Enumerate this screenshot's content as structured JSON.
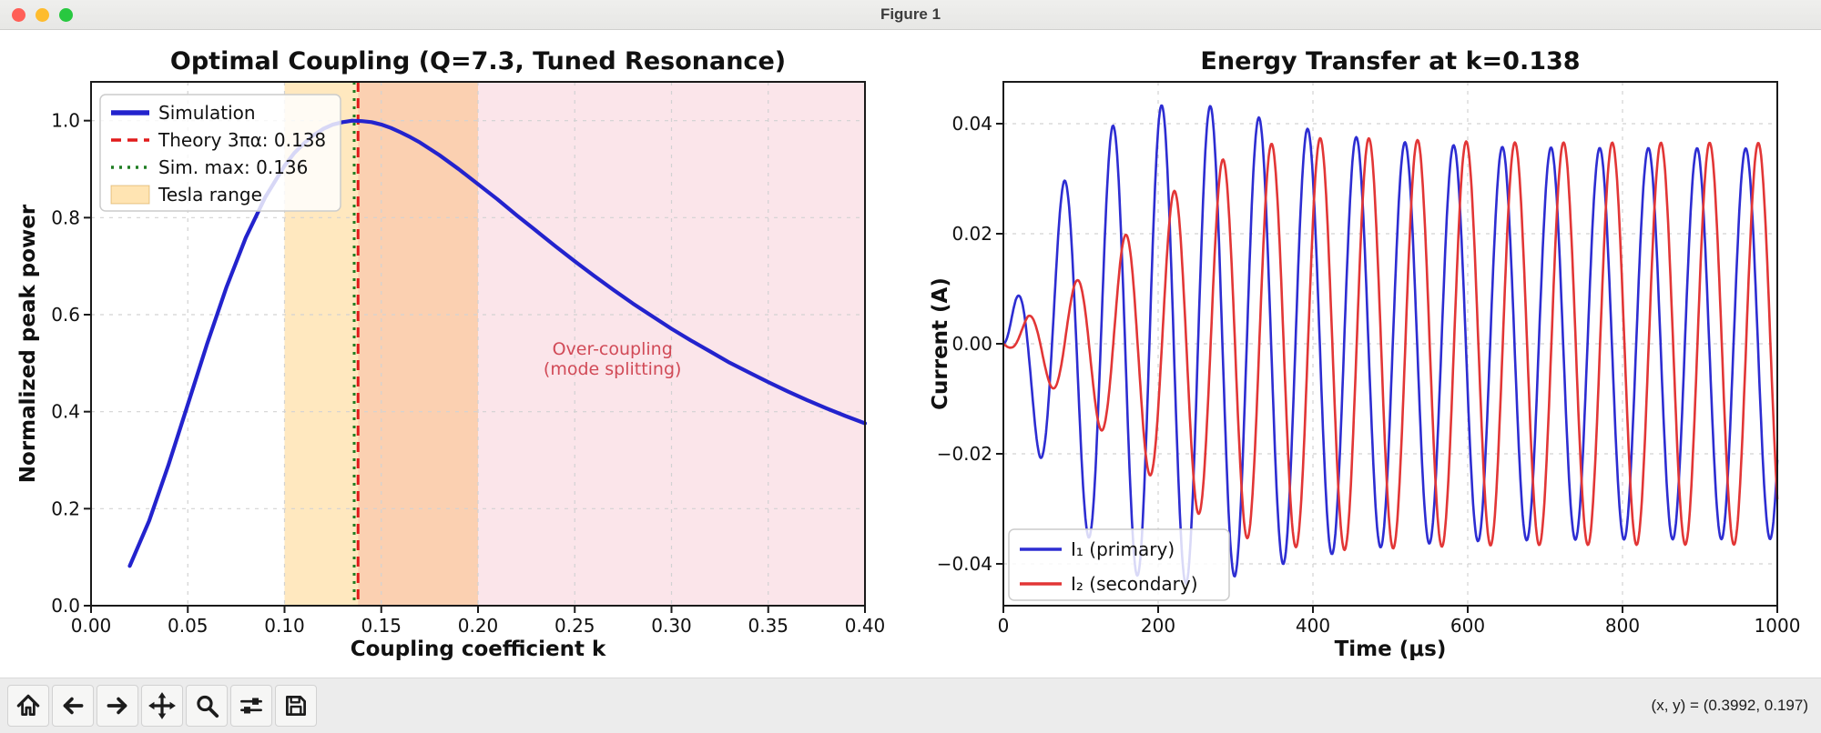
{
  "window": {
    "title": "Figure 1",
    "traffic_lights": [
      "#ff5f57",
      "#febc2e",
      "#28c840"
    ]
  },
  "toolbar": {
    "buttons": [
      "home",
      "back",
      "forward",
      "pan",
      "zoom",
      "configure-subplots",
      "save"
    ],
    "coords_readout": "(x, y) = (0.3992, 0.197)"
  },
  "chart_data": [
    {
      "name": "optimal-coupling",
      "type": "line",
      "title": "Optimal Coupling (Q=7.3, Tuned Resonance)",
      "xlabel": "Coupling coefficient k",
      "ylabel": "Normalized peak power",
      "xlim": [
        0,
        0.4
      ],
      "ylim": [
        0,
        1.08
      ],
      "grid": true,
      "xticks": {
        "values": [
          0,
          0.05,
          0.1,
          0.15,
          0.2,
          0.25,
          0.3,
          0.35,
          0.4
        ],
        "labels": [
          "0.00",
          "0.05",
          "0.10",
          "0.15",
          "0.20",
          "0.25",
          "0.30",
          "0.35",
          "0.40"
        ]
      },
      "yticks": {
        "values": [
          0,
          0.2,
          0.4,
          0.6,
          0.8,
          1.0
        ],
        "labels": [
          "0.0",
          "0.2",
          "0.4",
          "0.6",
          "0.8",
          "1.0"
        ]
      },
      "spans": [
        {
          "name": "tesla-range-band",
          "from": 0.1,
          "to": 0.2,
          "color": "rgba(255,165,0,0.25)"
        },
        {
          "name": "over-coupling-band",
          "from": 0.138,
          "to": 0.4,
          "color": "rgba(220,20,60,0.11)"
        }
      ],
      "vlines": [
        {
          "name": "theory-line",
          "label": "Theory 3πα: 0.138",
          "x": 0.138,
          "color": "#e11b1b",
          "dash": [
            11,
            7
          ],
          "width": 3
        },
        {
          "name": "sim-max-line",
          "label": "Sim. max: 0.136",
          "x": 0.136,
          "color": "#1f7d22",
          "dash": [
            3,
            6
          ],
          "width": 3
        }
      ],
      "series": [
        {
          "name": "Simulation",
          "color": "#2323cd",
          "width": 4.2,
          "x": [
            0.02,
            0.03,
            0.04,
            0.05,
            0.06,
            0.07,
            0.08,
            0.09,
            0.1,
            0.105,
            0.11,
            0.115,
            0.12,
            0.125,
            0.13,
            0.135,
            0.14,
            0.145,
            0.15,
            0.155,
            0.16,
            0.165,
            0.17,
            0.175,
            0.18,
            0.19,
            0.2,
            0.21,
            0.22,
            0.23,
            0.24,
            0.25,
            0.26,
            0.27,
            0.28,
            0.29,
            0.3,
            0.31,
            0.32,
            0.33,
            0.34,
            0.35,
            0.36,
            0.37,
            0.38,
            0.39,
            0.4
          ],
          "y": [
            0.082,
            0.175,
            0.29,
            0.415,
            0.54,
            0.657,
            0.759,
            0.842,
            0.907,
            0.933,
            0.953,
            0.97,
            0.983,
            0.992,
            0.997,
            1.0,
            0.999,
            0.997,
            0.992,
            0.985,
            0.976,
            0.966,
            0.955,
            0.942,
            0.929,
            0.9,
            0.869,
            0.838,
            0.805,
            0.773,
            0.741,
            0.71,
            0.68,
            0.651,
            0.623,
            0.597,
            0.571,
            0.547,
            0.524,
            0.501,
            0.481,
            0.461,
            0.442,
            0.424,
            0.407,
            0.391,
            0.376
          ]
        }
      ],
      "annotation": {
        "lines": [
          "Over-coupling",
          "(mode splitting)"
        ],
        "x": 0.2695,
        "color": "#d14a57"
      },
      "legend": {
        "position": "upper-left",
        "entries": [
          {
            "label": "Simulation",
            "swatch": "line",
            "color": "#2323cd",
            "dash": null,
            "width": 5.5
          },
          {
            "label": "Theory 3πα: 0.138",
            "swatch": "line",
            "color": "#e11b1b",
            "dash": [
              11,
              7
            ],
            "width": 3.5
          },
          {
            "label": "Sim. max: 0.136",
            "swatch": "line",
            "color": "#1f7d22",
            "dash": [
              3,
              6
            ],
            "width": 3.5
          },
          {
            "label": "Tesla range",
            "swatch": "patch",
            "color": "rgba(255,165,0,0.3)",
            "edge": "rgba(200,140,40,0.45)"
          }
        ]
      }
    },
    {
      "name": "energy-transfer",
      "type": "line",
      "title": "Energy Transfer at k=0.138",
      "xlabel": "Time (μs)",
      "ylabel": "Current (A)",
      "xlim": [
        0,
        1000
      ],
      "ylim": [
        -0.0476,
        0.0476
      ],
      "grid": true,
      "xticks": {
        "values": [
          0,
          200,
          400,
          600,
          800,
          1000
        ],
        "labels": [
          "0",
          "200",
          "400",
          "600",
          "800",
          "1000"
        ]
      },
      "yticks": {
        "values": [
          -0.04,
          -0.02,
          0,
          0.02,
          0.04
        ],
        "labels": [
          "−0.04",
          "−0.02",
          "0.00",
          "0.02",
          "0.04"
        ]
      },
      "carrier_period_us": 62.9,
      "series": [
        {
          "name": "I₁ (primary)",
          "color": "#2d2dd2",
          "width": 2.6,
          "phase_rad": 0,
          "envelope": [
            [
              0,
              0
            ],
            [
              16,
              0.008
            ],
            [
              47,
              0.0205
            ],
            [
              78,
              0.0295
            ],
            [
              110,
              0.0352
            ],
            [
              141,
              0.0396
            ],
            [
              172,
              0.0421
            ],
            [
              203,
              0.0433
            ],
            [
              219,
              0.0436
            ],
            [
              250,
              0.0436
            ],
            [
              281,
              0.0429
            ],
            [
              313,
              0.0418
            ],
            [
              344,
              0.0406
            ],
            [
              375,
              0.0396
            ],
            [
              406,
              0.0387
            ],
            [
              438,
              0.0379
            ],
            [
              469,
              0.0373
            ],
            [
              500,
              0.0368
            ],
            [
              563,
              0.0362
            ],
            [
              625,
              0.0358
            ],
            [
              750,
              0.0356
            ],
            [
              1000,
              0.0355
            ]
          ]
        },
        {
          "name": "I₂ (secondary)",
          "color": "#e23636",
          "width": 2.6,
          "phase_rad": -1.62,
          "envelope": [
            [
              0,
              0
            ],
            [
              10,
              0.0012
            ],
            [
              32,
              0.005
            ],
            [
              63,
              0.008
            ],
            [
              95,
              0.0115
            ],
            [
              127,
              0.0158
            ],
            [
              158,
              0.0198
            ],
            [
              190,
              0.024
            ],
            [
              221,
              0.0278
            ],
            [
              253,
              0.031
            ],
            [
              285,
              0.0336
            ],
            [
              316,
              0.0354
            ],
            [
              348,
              0.0364
            ],
            [
              379,
              0.037
            ],
            [
              411,
              0.0374
            ],
            [
              442,
              0.0375
            ],
            [
              500,
              0.0372
            ],
            [
              563,
              0.0369
            ],
            [
              650,
              0.0366
            ],
            [
              1000,
              0.0365
            ]
          ]
        }
      ],
      "legend": {
        "position": "lower-left",
        "entries": [
          {
            "label": "I₁ (primary)",
            "swatch": "line",
            "color": "#2d2dd2",
            "dash": null,
            "width": 3.5
          },
          {
            "label": "I₂ (secondary)",
            "swatch": "line",
            "color": "#e23636",
            "dash": null,
            "width": 3.5
          }
        ]
      }
    }
  ]
}
